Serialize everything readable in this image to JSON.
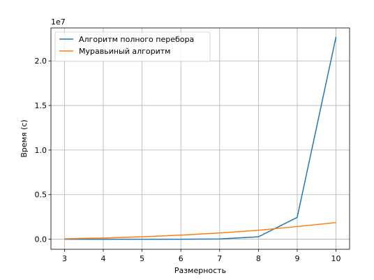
{
  "chart_data": {
    "type": "line",
    "xlabel": "Размерность",
    "ylabel": "Время (с)",
    "y_offset_label": "1e7",
    "x": [
      3,
      4,
      5,
      6,
      7,
      8,
      9,
      10
    ],
    "xlim": [
      2.65,
      10.35
    ],
    "ylim": [
      -1130000,
      23700000
    ],
    "xticks": [
      3,
      4,
      5,
      6,
      7,
      8,
      9,
      10
    ],
    "yticks": [
      0,
      5000000,
      10000000,
      15000000,
      20000000
    ],
    "ytick_labels": [
      "0.0",
      "0.5",
      "1.0",
      "1.5",
      "2.0"
    ],
    "grid": true,
    "legend_position": "upper-left",
    "series": [
      {
        "name": "Алгоритм полного перебора",
        "color": "#1f77b4",
        "values": [
          0,
          0,
          0,
          0,
          30000,
          270000,
          2450000,
          22700000
        ]
      },
      {
        "name": "Муравьиный алгоритм",
        "color": "#ff7f0e",
        "values": [
          50000,
          130000,
          270000,
          460000,
          700000,
          1000000,
          1420000,
          1870000
        ]
      }
    ]
  }
}
